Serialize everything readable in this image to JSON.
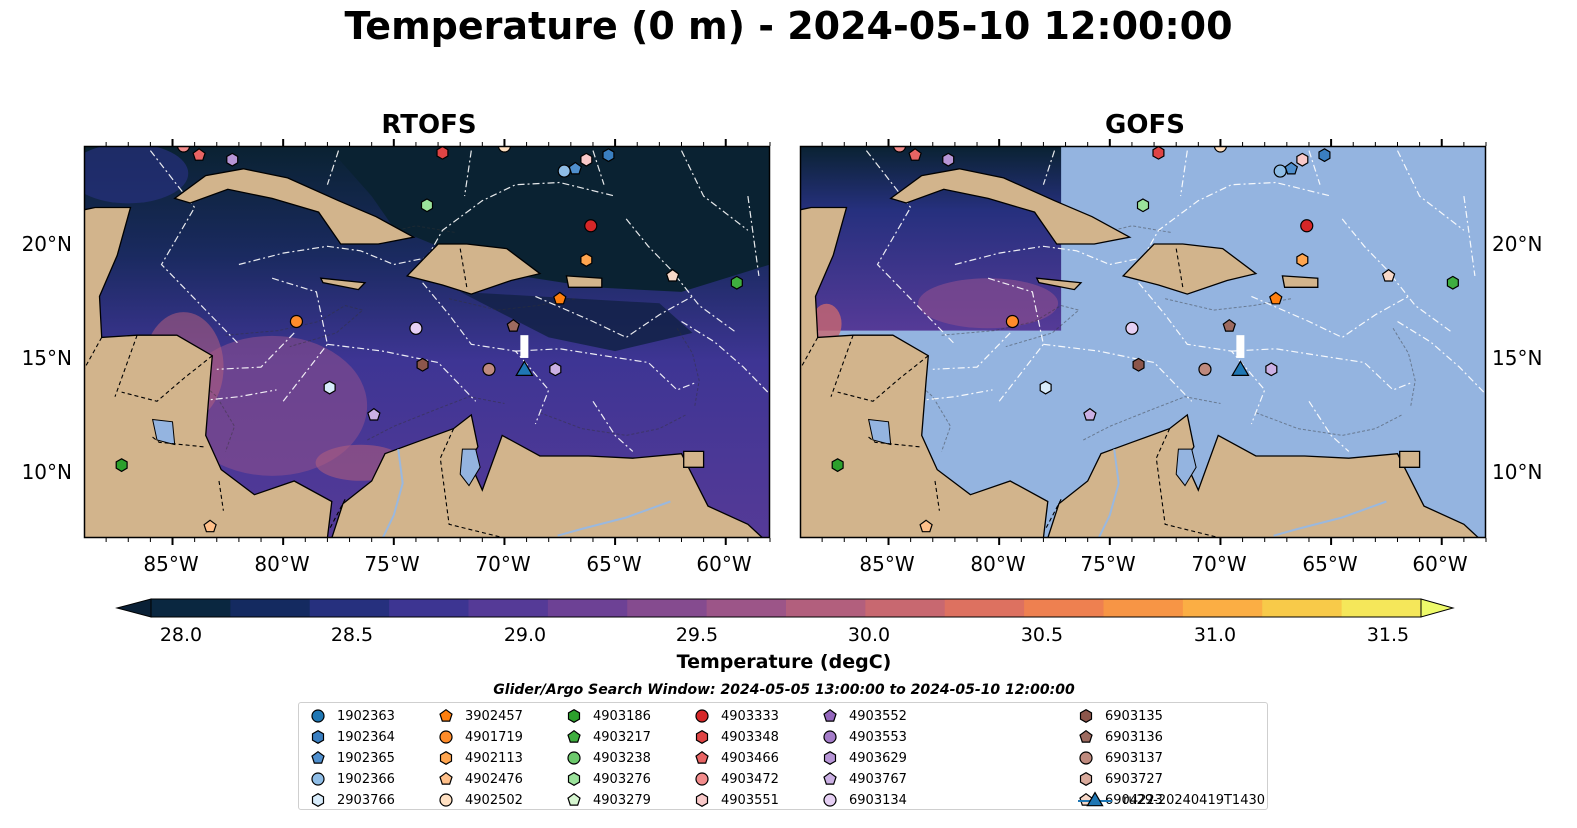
{
  "title": "Temperature (0 m) - 2024-05-10 12:00:00",
  "panels": [
    {
      "title": "RTOFS"
    },
    {
      "title": "GOFS"
    }
  ],
  "lat_labels": [
    "20°N",
    "15°N",
    "10°N"
  ],
  "lon_labels": [
    "85°W",
    "80°W",
    "75°W",
    "70°W",
    "65°W",
    "60°W"
  ],
  "colorbar": {
    "label": "Temperature (degC)",
    "ticks": [
      "28.0",
      "28.5",
      "29.0",
      "29.5",
      "30.0",
      "30.5",
      "31.0",
      "31.5"
    ],
    "colors": [
      "#0a2740",
      "#142a60",
      "#26307e",
      "#3d3592",
      "#553a97",
      "#6d4195",
      "#854b8f",
      "#9c5588",
      "#b25f7d",
      "#c86870",
      "#dd7160",
      "#ee8050",
      "#f79545",
      "#fbae44",
      "#f8ca49",
      "#f5e75a"
    ],
    "under_color": "#0a2036",
    "over_color": "#eefa6a"
  },
  "search_window": "Glider/Argo Search Window: 2024-05-05 13:00:00 to 2024-05-10 12:00:00",
  "colors": {
    "land": "#d2b48c",
    "gofs_ocean": "#94b4e0",
    "rtofs_deep": "#0a2232",
    "rtofs_mid": "#3e3594",
    "rtofs_warm": "#b25f7d"
  },
  "legend": [
    {
      "label": "1902363",
      "marker": "circle",
      "color": "#1f77b4"
    },
    {
      "label": "1902364",
      "marker": "hexagon",
      "color": "#3a7fc1"
    },
    {
      "label": "1902365",
      "marker": "pentagon",
      "color": "#4f8fce"
    },
    {
      "label": "1902366",
      "marker": "circle",
      "color": "#8fbde6"
    },
    {
      "label": "2903766",
      "marker": "hexagon",
      "color": "#d8ecfb"
    },
    {
      "label": "3902457",
      "marker": "pentagon",
      "color": "#ff7f0e"
    },
    {
      "label": "4901719",
      "marker": "circle",
      "color": "#ff8c2a"
    },
    {
      "label": "4902113",
      "marker": "hexagon",
      "color": "#ffa54f"
    },
    {
      "label": "4902476",
      "marker": "pentagon",
      "color": "#ffc08a"
    },
    {
      "label": "4902502",
      "marker": "circle",
      "color": "#ffe0c2"
    },
    {
      "label": "4903186",
      "marker": "hexagon",
      "color": "#2ca02c"
    },
    {
      "label": "4903217",
      "marker": "pentagon",
      "color": "#3fae3f"
    },
    {
      "label": "4903238",
      "marker": "circle",
      "color": "#6cc96c"
    },
    {
      "label": "4903276",
      "marker": "hexagon",
      "color": "#9be29b"
    },
    {
      "label": "4903279",
      "marker": "pentagon",
      "color": "#d6f6d0"
    },
    {
      "label": "4903333",
      "marker": "circle",
      "color": "#d62728"
    },
    {
      "label": "4903348",
      "marker": "hexagon",
      "color": "#df4444"
    },
    {
      "label": "4903466",
      "marker": "pentagon",
      "color": "#e86464"
    },
    {
      "label": "4903472",
      "marker": "circle",
      "color": "#f28c8c"
    },
    {
      "label": "4903551",
      "marker": "hexagon",
      "color": "#f9c9c9"
    },
    {
      "label": "4903552",
      "marker": "pentagon",
      "color": "#9467bd"
    },
    {
      "label": "4903553",
      "marker": "circle",
      "color": "#a47cc8"
    },
    {
      "label": "4903629",
      "marker": "hexagon",
      "color": "#b795d6"
    },
    {
      "label": "4903767",
      "marker": "pentagon",
      "color": "#cbb0e4"
    },
    {
      "label": "6903134",
      "marker": "circle",
      "color": "#e6d0f4"
    },
    {
      "label": "6903135",
      "marker": "hexagon",
      "color": "#8c564b"
    },
    {
      "label": "6903136",
      "marker": "pentagon",
      "color": "#9d6a5f"
    },
    {
      "label": "6903137",
      "marker": "circle",
      "color": "#bf8a7e"
    },
    {
      "label": "6903727",
      "marker": "hexagon",
      "color": "#d9aa9c"
    },
    {
      "label": "6904223",
      "marker": "pentagon",
      "color": "#f7d8c8"
    },
    {
      "label": "ru29-20240419T1430",
      "marker": "triangle",
      "color": "#1f77b4"
    }
  ],
  "floats": [
    {
      "lon": -84.5,
      "lat": 24.2,
      "marker": "circle",
      "color": "#f28c8c"
    },
    {
      "lon": -83.8,
      "lat": 23.8,
      "marker": "pentagon",
      "color": "#e86464"
    },
    {
      "lon": -82.3,
      "lat": 23.6,
      "marker": "hexagon",
      "color": "#b795d6"
    },
    {
      "lon": -72.8,
      "lat": 23.9,
      "marker": "hexagon",
      "color": "#df4444"
    },
    {
      "lon": -70.0,
      "lat": 24.2,
      "marker": "circle",
      "color": "#ffe0c2"
    },
    {
      "lon": -67.3,
      "lat": 23.1,
      "marker": "circle",
      "color": "#8fbde6"
    },
    {
      "lon": -66.8,
      "lat": 23.2,
      "marker": "pentagon",
      "color": "#4f8fce"
    },
    {
      "lon": -66.3,
      "lat": 23.6,
      "marker": "hexagon",
      "color": "#f9c9c9"
    },
    {
      "lon": -65.3,
      "lat": 23.8,
      "marker": "hexagon",
      "color": "#3a7fc1"
    },
    {
      "lon": -73.5,
      "lat": 21.6,
      "marker": "hexagon",
      "color": "#9be29b"
    },
    {
      "lon": -66.1,
      "lat": 20.7,
      "marker": "circle",
      "color": "#d62728"
    },
    {
      "lon": -66.3,
      "lat": 19.2,
      "marker": "hexagon",
      "color": "#ffa54f"
    },
    {
      "lon": -62.4,
      "lat": 18.5,
      "marker": "pentagon",
      "color": "#f7d8c8"
    },
    {
      "lon": -59.5,
      "lat": 18.2,
      "marker": "hexagon",
      "color": "#3fae3f"
    },
    {
      "lon": -67.5,
      "lat": 17.5,
      "marker": "pentagon",
      "color": "#ff7f0e"
    },
    {
      "lon": -79.4,
      "lat": 16.5,
      "marker": "circle",
      "color": "#ff8c2a"
    },
    {
      "lon": -74.0,
      "lat": 16.2,
      "marker": "circle",
      "color": "#e6d0f4"
    },
    {
      "lon": -69.6,
      "lat": 16.3,
      "marker": "pentagon",
      "color": "#9d6a5f"
    },
    {
      "lon": -73.7,
      "lat": 14.6,
      "marker": "hexagon",
      "color": "#8c564b"
    },
    {
      "lon": -70.7,
      "lat": 14.4,
      "marker": "circle",
      "color": "#bf8a7e"
    },
    {
      "lon": -67.7,
      "lat": 14.4,
      "marker": "hexagon",
      "color": "#cbb0e4"
    },
    {
      "lon": -77.9,
      "lat": 13.6,
      "marker": "hexagon",
      "color": "#d8ecfb"
    },
    {
      "lon": -75.9,
      "lat": 12.4,
      "marker": "pentagon",
      "color": "#cbb0e4"
    },
    {
      "lon": -87.3,
      "lat": 10.2,
      "marker": "hexagon",
      "color": "#2ca02c"
    },
    {
      "lon": -83.3,
      "lat": 7.5,
      "marker": "pentagon",
      "color": "#ffc08a"
    }
  ],
  "glider": {
    "lon": -69.1,
    "lat": 14.4,
    "marker": "triangle",
    "color": "#1f77b4"
  }
}
